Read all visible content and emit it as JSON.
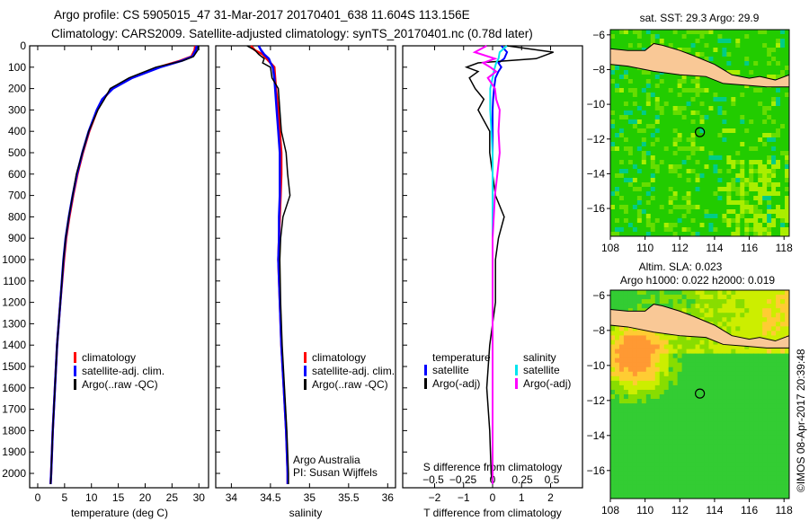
{
  "title": {
    "line1": "Argo profile: CS 5905015_47 31-Mar-2017 20170401_638 11.604S 113.156E",
    "line2": "Climatology: CARS2009. Satellite-adjusted climatology: synTS_20170401.nc (0.78d later)"
  },
  "credit": "©IMOS 08-Apr-2017 20:39:48",
  "colors": {
    "climatology": "#ff0000",
    "satellite": "#0000ff",
    "argo": "#000000",
    "sat_s": "#00e5ee",
    "argo_s": "#ff00ff",
    "land": "#f9c896"
  },
  "chart_data": [
    {
      "type": "line",
      "name": "temperature-profile",
      "xlabel": "temperature (deg C)",
      "ylabel": "",
      "xlim": [
        -1.5,
        31.8
      ],
      "ylim": [
        2070,
        0
      ],
      "xticks": [
        0,
        5,
        10,
        15,
        20,
        25,
        30
      ],
      "yticks": [
        0,
        100,
        200,
        300,
        400,
        500,
        600,
        700,
        800,
        900,
        1000,
        1100,
        1200,
        1300,
        1400,
        1500,
        1600,
        1700,
        1800,
        1900,
        2000
      ],
      "legend": [
        "climatology",
        "satellite-adj. clim.",
        "Argo(..raw -QC)"
      ],
      "legend_position": "lower-center",
      "depth": [
        0,
        20,
        50,
        70,
        100,
        150,
        200,
        250,
        300,
        400,
        500,
        600,
        700,
        800,
        900,
        1000,
        1200,
        1400,
        1600,
        1800,
        2000,
        2050
      ],
      "series": [
        {
          "name": "climatology",
          "values": [
            29.3,
            29.2,
            28.6,
            26.5,
            22.5,
            17.5,
            13.8,
            12.2,
            11.1,
            9.6,
            8.4,
            7.4,
            6.6,
            5.9,
            5.3,
            4.9,
            4.2,
            3.6,
            3.2,
            2.8,
            2.5,
            2.4
          ]
        },
        {
          "name": "satellite-adj. clim.",
          "values": [
            29.6,
            29.4,
            28.8,
            26.8,
            22.8,
            17.6,
            14.0,
            12.0,
            11.0,
            9.5,
            8.3,
            7.3,
            6.5,
            5.8,
            5.2,
            4.8,
            4.2,
            3.6,
            3.2,
            2.8,
            2.5,
            2.4
          ]
        },
        {
          "name": "Argo(..raw -QC)",
          "values": [
            29.9,
            29.8,
            29.0,
            27.0,
            22.0,
            17.0,
            13.5,
            12.4,
            11.2,
            9.5,
            8.3,
            7.2,
            6.5,
            5.8,
            5.2,
            4.8,
            4.2,
            3.6,
            3.2,
            2.8,
            2.5,
            2.4
          ]
        }
      ]
    },
    {
      "type": "line",
      "name": "salinity-profile",
      "xlabel": "salinity",
      "xlim": [
        33.8,
        36.1
      ],
      "ylim": [
        2070,
        0
      ],
      "xticks": [
        34,
        34.5,
        35,
        35.5,
        36
      ],
      "legend": [
        "climatology",
        "satellite-adj. clim.",
        "Argo(..raw -QC)"
      ],
      "annotation": [
        "Argo Australia",
        "PI: Susan Wijffels"
      ],
      "depth": [
        0,
        20,
        40,
        60,
        80,
        100,
        150,
        200,
        300,
        400,
        500,
        600,
        700,
        800,
        900,
        1000,
        1200,
        1400,
        1600,
        1800,
        2000,
        2050
      ],
      "series": [
        {
          "name": "climatology",
          "values": [
            34.25,
            34.3,
            34.4,
            34.45,
            34.5,
            34.55,
            34.56,
            34.57,
            34.6,
            34.62,
            34.64,
            34.64,
            34.63,
            34.62,
            34.61,
            34.6,
            34.62,
            34.64,
            34.67,
            34.7,
            34.72,
            34.72
          ]
        },
        {
          "name": "satellite-adj. clim.",
          "values": [
            34.35,
            34.38,
            34.42,
            34.48,
            34.5,
            34.53,
            34.55,
            34.56,
            34.58,
            34.6,
            34.62,
            34.62,
            34.62,
            34.61,
            34.61,
            34.6,
            34.62,
            34.64,
            34.67,
            34.7,
            34.72,
            34.72
          ]
        },
        {
          "name": "Argo(..raw -QC)",
          "values": [
            34.2,
            34.3,
            34.35,
            34.42,
            34.4,
            34.5,
            34.52,
            34.6,
            34.62,
            34.64,
            34.7,
            34.72,
            34.75,
            34.66,
            34.63,
            34.62,
            34.63,
            34.65,
            34.68,
            34.71,
            34.73,
            34.73
          ]
        }
      ]
    },
    {
      "type": "line",
      "name": "difference-profile",
      "xlabel": "T difference from climatology",
      "xlabel2": "S difference from climatology",
      "xlim": [
        -3.1,
        3.1
      ],
      "xticks": [
        -2,
        -1,
        0,
        1,
        2
      ],
      "xticks2": [
        -0.5,
        -0.25,
        0,
        0.25,
        0.5
      ],
      "legend_t": {
        "title": "temperature",
        "items": [
          "satellite",
          "Argo(-adj)"
        ]
      },
      "legend_s": {
        "title": "salinity",
        "items": [
          "satellite",
          "Argo(-adj)"
        ]
      },
      "depth": [
        0,
        30,
        60,
        80,
        100,
        120,
        150,
        200,
        250,
        300,
        400,
        500,
        600,
        700,
        800,
        900,
        1000,
        1200,
        1400,
        1600,
        1800,
        2000,
        2050
      ],
      "series": [
        {
          "name": "T satellite",
          "values": [
            0.3,
            0.5,
            0.4,
            0.2,
            0.3,
            0.2,
            0.1,
            0.05,
            0.02,
            0.0,
            0.0,
            0.0,
            0.0,
            0.0,
            0.0,
            0.0,
            0.0,
            0.0,
            0.0,
            0.0,
            0.0,
            0.0,
            0.0
          ]
        },
        {
          "name": "T Argo(-adj)",
          "values": [
            0.5,
            2.1,
            1.5,
            -0.5,
            -0.9,
            -0.5,
            -0.8,
            -0.6,
            -0.3,
            -0.5,
            -0.1,
            -0.1,
            0.0,
            0.1,
            0.4,
            0.2,
            0.1,
            0.1,
            -0.1,
            -0.2,
            -0.1,
            -0.05,
            0.0
          ]
        },
        {
          "name": "S satellite",
          "values": [
            0.12,
            0.06,
            0.05,
            0.03,
            0.02,
            0.01,
            0.0,
            -0.02,
            -0.02,
            -0.02,
            -0.01,
            0.0,
            0.0,
            0.0,
            0.0,
            0.0,
            0.0,
            0.0,
            0.0,
            0.0,
            0.0,
            0.0,
            0.0
          ]
        },
        {
          "name": "S Argo(-adj)",
          "values": [
            -0.05,
            -0.15,
            0.02,
            -0.08,
            -0.02,
            0.03,
            -0.04,
            0.02,
            0.03,
            0.06,
            0.05,
            0.06,
            0.04,
            0.02,
            0.01,
            0.0,
            0.0,
            0.0,
            0.0,
            0.0,
            0.0,
            0.0,
            0.0
          ]
        }
      ]
    },
    {
      "type": "heatmap",
      "name": "sst-map",
      "title": "sat. SST: 29.3 Argo: 29.9",
      "xlim": [
        108,
        118.3
      ],
      "ylim": [
        -17.6,
        -5.7
      ],
      "xticks": [
        108,
        110,
        112,
        114,
        116,
        118
      ],
      "yticks": [
        -6,
        -8,
        -10,
        -12,
        -14,
        -16
      ],
      "marker": {
        "lon": 113.156,
        "lat": -11.604
      }
    },
    {
      "type": "heatmap",
      "name": "sla-map",
      "title": "Altim. SLA: 0.023",
      "subtitle": "Argo h1000: 0.022 h2000: 0.019",
      "xlim": [
        108,
        118.3
      ],
      "ylim": [
        -17.6,
        -5.7
      ],
      "xticks": [
        108,
        110,
        112,
        114,
        116,
        118
      ],
      "yticks": [
        -6,
        -8,
        -10,
        -12,
        -14,
        -16
      ],
      "marker": {
        "lon": 113.156,
        "lat": -11.604
      }
    }
  ]
}
